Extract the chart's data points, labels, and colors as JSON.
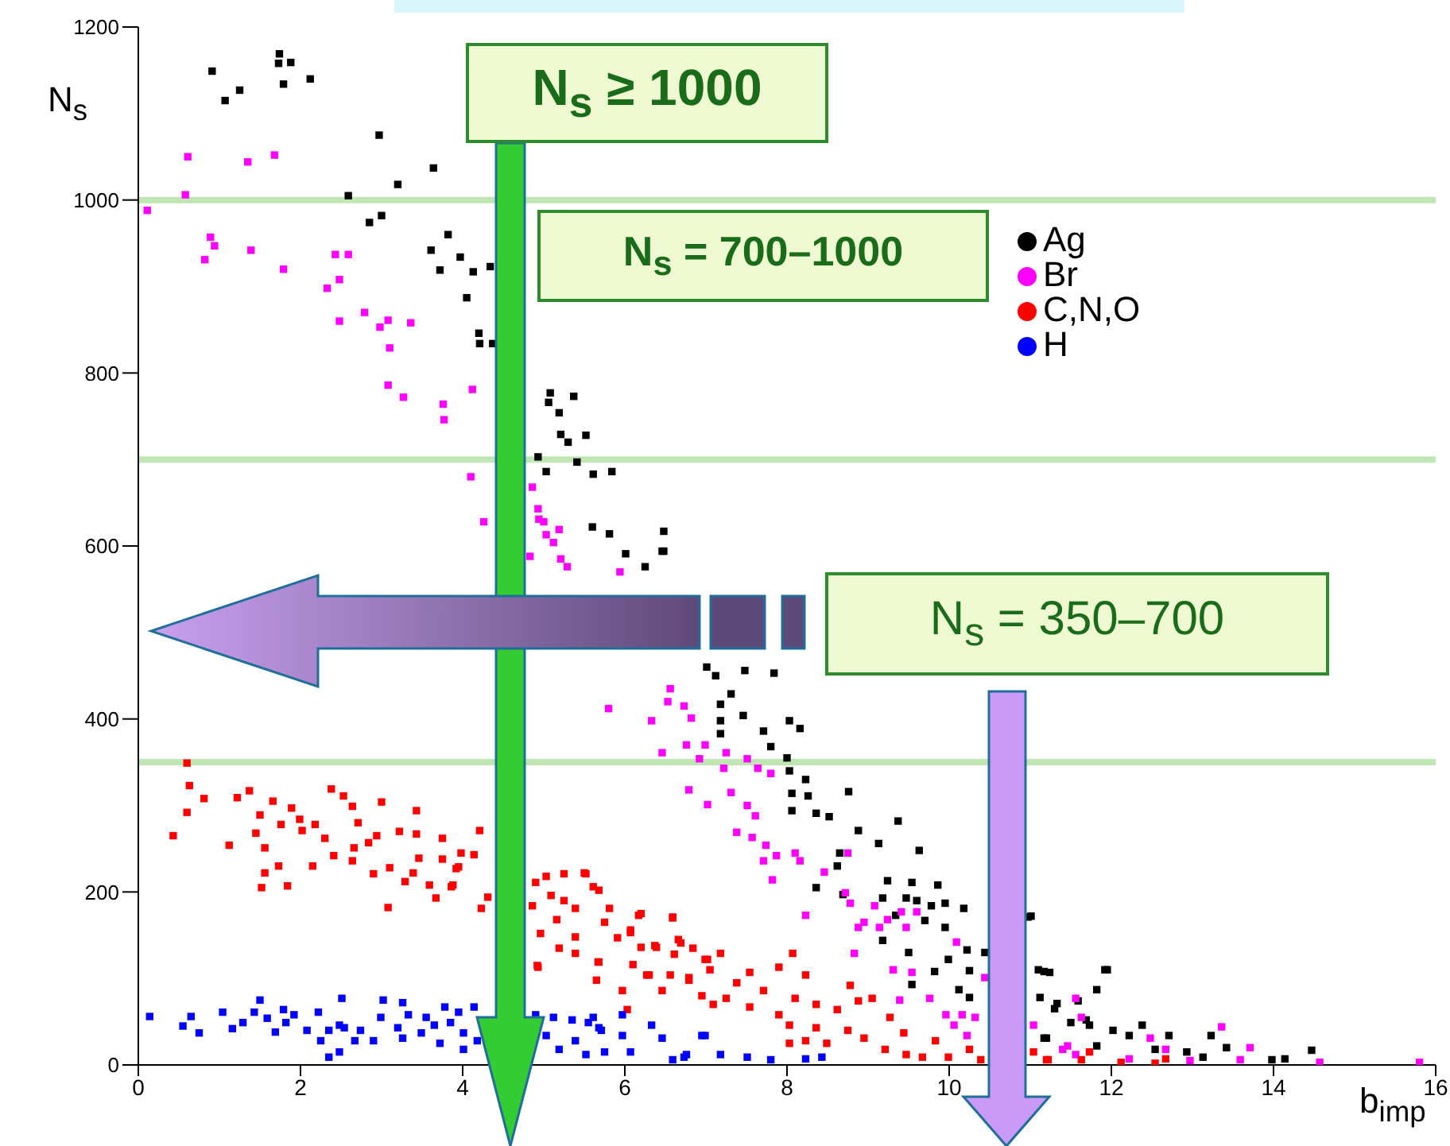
{
  "chart_data": {
    "type": "scatter",
    "xlabel": "b$_{imp}$",
    "ylabel": "N$_{s}$",
    "xlim": [
      0,
      16
    ],
    "xticks": [
      0,
      2,
      4,
      6,
      8,
      10,
      12,
      14,
      16
    ],
    "ylim": [
      0,
      1200
    ],
    "yticks": [
      0,
      200,
      400,
      600,
      800,
      1000,
      1200
    ],
    "legend": "top right",
    "marker": "square",
    "grid": false,
    "annotations": [
      "N$_{s}$ ≥ 1000",
      "N$_{s}$ = 700–1000",
      "N$_{s}$ = 350–700"
    ],
    "ref_lines": [
      {
        "axis": "y",
        "value": 1000,
        "color": "#bfe6b3"
      },
      {
        "axis": "y",
        "value": 700,
        "color": "#bfe6b3"
      },
      {
        "axis": "y",
        "value": 350,
        "color": "#bfe6b3"
      }
    ],
    "series": [
      {
        "name": "Ag",
        "color": "#000000",
        "x": [
          0.91,
          1.07,
          1.25,
          1.74,
          1.73,
          1.88,
          1.79,
          2.12,
          2.97,
          3.64,
          3.2,
          2.59,
          2.85,
          3.0,
          3.82,
          3.61,
          3.72,
          3.97,
          4.13,
          4.34,
          4.05,
          4.2,
          4.21,
          4.37,
          5.08,
          5.06,
          5.19,
          5.37,
          5.21,
          5.3,
          5.52,
          4.93,
          5.03,
          5.41,
          5.61,
          5.84,
          5.6,
          5.81,
          6.48,
          6.48,
          6.01,
          6.25,
          6.46,
          7.01,
          7.12,
          7.48,
          7.84,
          7.31,
          7.18,
          7.18,
          7.46,
          7.71,
          7.18,
          8.03,
          8.16,
          7.8,
          8.0,
          8.03,
          8.23,
          8.06,
          8.26,
          8.76,
          8.36,
          8.52,
          8.06,
          9.37,
          8.88,
          9.13,
          9.63,
          8.65,
          8.62,
          8.36,
          9.24,
          9.54,
          9.86,
          8.69,
          9.18,
          9.47,
          9.6,
          9.95,
          10.18,
          9.78,
          9.34,
          9.7,
          9.18,
          9.5,
          9.95,
          10.22,
          10.44,
          9.99,
          10.25,
          9.82,
          9.54,
          10.12,
          10.25,
          10.97,
          11.17,
          11.92,
          11.59,
          11.12,
          11.3,
          11.73,
          11.17,
          11.5,
          11.01,
          11.1,
          11.24,
          11.95,
          11.82,
          11.33,
          11.69,
          11.2,
          12.02,
          12.38,
          12.22,
          12.71,
          13.23,
          13.42,
          12.93,
          13.98,
          14.14,
          14.47,
          13.13,
          12.54,
          11.82
        ],
        "values": [
          1149,
          1115,
          1127,
          1169,
          1158,
          1159,
          1134,
          1140,
          1075,
          1037,
          1018,
          1005,
          974,
          982,
          960,
          942,
          919,
          934,
          917,
          923,
          887,
          846,
          834,
          834,
          777,
          766,
          754,
          773,
          729,
          720,
          728,
          703,
          686,
          697,
          683,
          686,
          622,
          614,
          617,
          594,
          591,
          576,
          594,
          460,
          450,
          456,
          453,
          429,
          417,
          398,
          404,
          386,
          383,
          398,
          389,
          368,
          355,
          340,
          330,
          314,
          311,
          316,
          291,
          287,
          294,
          282,
          271,
          256,
          248,
          245,
          230,
          205,
          213,
          211,
          208,
          197,
          193,
          193,
          190,
          187,
          181,
          184,
          173,
          167,
          144,
          130,
          159,
          133,
          130,
          122,
          109,
          108,
          93,
          87,
          78,
          171,
          108,
          110,
          74,
          78,
          65,
          46,
          31,
          49,
          172,
          110,
          107,
          110,
          87,
          71,
          52,
          31,
          40,
          46,
          34,
          34,
          34,
          20,
          15,
          6,
          7,
          17,
          9,
          18,
          22
        ]
      },
      {
        "name": "Br",
        "color": "#ff00ff",
        "x": [
          0.11,
          0.58,
          0.61,
          1.35,
          1.68,
          0.89,
          0.94,
          0.82,
          1.39,
          1.79,
          2.43,
          2.59,
          2.48,
          2.33,
          2.79,
          2.48,
          2.98,
          3.08,
          3.36,
          3.1,
          3.08,
          3.27,
          3.76,
          3.77,
          4.12,
          4.1,
          4.26,
          4.86,
          4.94,
          5.03,
          5.19,
          4.83,
          5.21,
          5.29,
          4.93,
          5.0,
          5.12,
          5.94,
          6.56,
          6.53,
          6.73,
          6.82,
          5.8,
          6.33,
          6.46,
          6.76,
          6.99,
          6.92,
          7.25,
          7.51,
          7.22,
          7.64,
          7.8,
          6.79,
          7.02,
          7.31,
          7.51,
          7.61,
          7.38,
          7.57,
          7.74,
          7.71,
          7.87,
          8.1,
          8.16,
          7.82,
          8.46,
          8.75,
          8.72,
          8.78,
          9.08,
          9.24,
          9.41,
          8.95,
          8.88,
          9.14,
          9.47,
          9.6,
          8.23,
          8.83,
          9.31,
          9.54,
          9.39,
          9.76,
          10.09,
          10.44,
          9.96,
          10.16,
          10.32,
          10.06,
          10.22,
          11.04,
          11.56,
          11.46,
          11.63,
          11.4,
          11.56,
          12.48,
          12.67,
          13.36,
          13.71,
          13.59,
          12.22,
          12.97,
          14.57,
          15.8
        ],
        "values": [
          988,
          1006,
          1050,
          1044,
          1052,
          957,
          947,
          931,
          942,
          920,
          937,
          937,
          908,
          898,
          870,
          860,
          853,
          861,
          858,
          829,
          786,
          772,
          764,
          746,
          781,
          680,
          628,
          668,
          631,
          613,
          619,
          588,
          585,
          576,
          643,
          628,
          604,
          570,
          435,
          420,
          415,
          401,
          412,
          398,
          361,
          370,
          370,
          354,
          361,
          354,
          343,
          343,
          337,
          318,
          301,
          315,
          300,
          288,
          269,
          263,
          254,
          236,
          242,
          245,
          236,
          214,
          223,
          245,
          199,
          187,
          184,
          168,
          177,
          165,
          159,
          159,
          159,
          177,
          173,
          129,
          110,
          107,
          75,
          77,
          142,
          101,
          58,
          58,
          55,
          46,
          34,
          46,
          77,
          22,
          55,
          18,
          12,
          31,
          18,
          44,
          20,
          6,
          7,
          5,
          3,
          3
        ]
      },
      {
        "name": "C,N,O",
        "color": "#ff0000",
        "x": [
          0.6,
          0.63,
          0.81,
          0.6,
          0.43,
          1.22,
          1.37,
          1.12,
          1.5,
          1.45,
          1.56,
          1.56,
          1.52,
          1.66,
          1.89,
          1.76,
          1.99,
          2.02,
          2.18,
          2.3,
          2.38,
          2.53,
          2.64,
          2.71,
          3.0,
          3.43,
          1.73,
          1.84,
          2.15,
          2.41,
          2.64,
          2.66,
          2.84,
          2.9,
          2.94,
          3.1,
          3.29,
          3.08,
          3.22,
          3.43,
          3.39,
          3.46,
          3.59,
          3.67,
          3.75,
          3.75,
          3.95,
          3.86,
          3.98,
          4.14,
          4.21,
          4.31,
          4.23,
          4.9,
          5.03,
          5.25,
          5.5,
          5.61,
          5.09,
          5.25,
          4.86,
          5.39,
          5.16,
          4.96,
          5.39,
          5.19,
          5.39,
          4.92,
          5.65,
          5.67,
          5.81,
          5.75,
          5.91,
          6.07,
          6.17,
          6.2,
          6.39,
          6.1,
          6.27,
          6.59,
          6.66,
          6.84,
          6.61,
          6.56,
          6.79,
          7.02,
          7.05,
          6.95,
          7.09,
          5.97,
          6.03,
          3.92,
          3.88,
          5.52,
          5.68,
          6.2,
          6.59,
          6.07,
          6.37,
          6.69,
          6.99,
          7.18,
          4.93,
          5.68,
          6.3,
          6.46,
          6.79,
          7.38,
          7.54,
          7.71,
          7.9,
          8.07,
          8.23,
          7.25,
          7.54,
          7.9,
          8.1,
          8.36,
          8.62,
          8.78,
          8.88,
          9.05,
          8.03,
          8.36,
          8.49,
          8.03,
          8.75,
          8.95,
          9.27,
          9.21,
          9.44,
          9.47,
          9.67,
          9.83,
          9.99,
          10.25,
          10.39,
          11.2,
          11.63,
          8.23,
          11.04,
          11.22,
          11.73,
          12.12,
          12.67,
          12.54
        ],
        "values": [
          349,
          323,
          308,
          292,
          265,
          309,
          317,
          254,
          289,
          268,
          251,
          222,
          205,
          305,
          297,
          278,
          284,
          271,
          278,
          262,
          319,
          311,
          299,
          280,
          304,
          294,
          230,
          207,
          230,
          242,
          236,
          251,
          257,
          221,
          265,
          228,
          212,
          182,
          270,
          267,
          222,
          239,
          208,
          193,
          262,
          238,
          229,
          206,
          245,
          243,
          271,
          194,
          181,
          211,
          218,
          221,
          222,
          206,
          196,
          190,
          184,
          181,
          168,
          152,
          148,
          135,
          129,
          115,
          98,
          119,
          181,
          165,
          147,
          156,
          173,
          136,
          136,
          116,
          104,
          170,
          145,
          135,
          128,
          104,
          101,
          122,
          110,
          80,
          70,
          86,
          64,
          227,
          208,
          221,
          202,
          175,
          171,
          153,
          138,
          141,
          122,
          129,
          113,
          119,
          104,
          86,
          98,
          95,
          107,
          86,
          113,
          129,
          104,
          77,
          67,
          58,
          77,
          70,
          64,
          92,
          74,
          77,
          46,
          43,
          25,
          25,
          40,
          31,
          55,
          18,
          37,
          12,
          9,
          28,
          9,
          18,
          6,
          6,
          6,
          28,
          15,
          6,
          15,
          3,
          7,
          2
        ]
      },
      {
        "name": "H",
        "color": "#0000ff",
        "x": [
          0.14,
          0.55,
          0.65,
          0.75,
          1.04,
          1.16,
          1.29,
          1.43,
          1.5,
          1.59,
          1.69,
          1.79,
          1.82,
          1.92,
          2.08,
          2.22,
          2.25,
          2.35,
          2.35,
          2.48,
          2.48,
          2.51,
          2.54,
          2.67,
          2.74,
          2.9,
          2.99,
          3.02,
          3.2,
          3.26,
          3.26,
          3.33,
          3.49,
          3.55,
          3.65,
          3.72,
          3.78,
          3.85,
          3.95,
          4.01,
          4.01,
          4.14,
          4.18,
          4.9,
          5.03,
          5.12,
          5.19,
          5.35,
          5.39,
          5.52,
          5.61,
          5.68,
          5.75,
          5.97,
          5.97,
          6.07,
          6.33,
          6.46,
          6.59,
          6.76,
          6.95,
          7.18,
          6.99,
          6.73,
          7.51,
          7.8,
          8.23,
          8.43,
          5.55,
          5.71
        ],
        "values": [
          56,
          45,
          56,
          37,
          61,
          42,
          49,
          61,
          75,
          54,
          38,
          64,
          49,
          58,
          40,
          61,
          28,
          9,
          40,
          46,
          15,
          77,
          43,
          28,
          40,
          28,
          55,
          75,
          43,
          72,
          31,
          58,
          37,
          55,
          46,
          25,
          67,
          49,
          61,
          37,
          18,
          67,
          28,
          58,
          34,
          55,
          18,
          52,
          28,
          12,
          55,
          43,
          15,
          58,
          34,
          15,
          46,
          31,
          6,
          12,
          34,
          12,
          34,
          9,
          9,
          6,
          7,
          9,
          49,
          40
        ]
      }
    ]
  }
}
